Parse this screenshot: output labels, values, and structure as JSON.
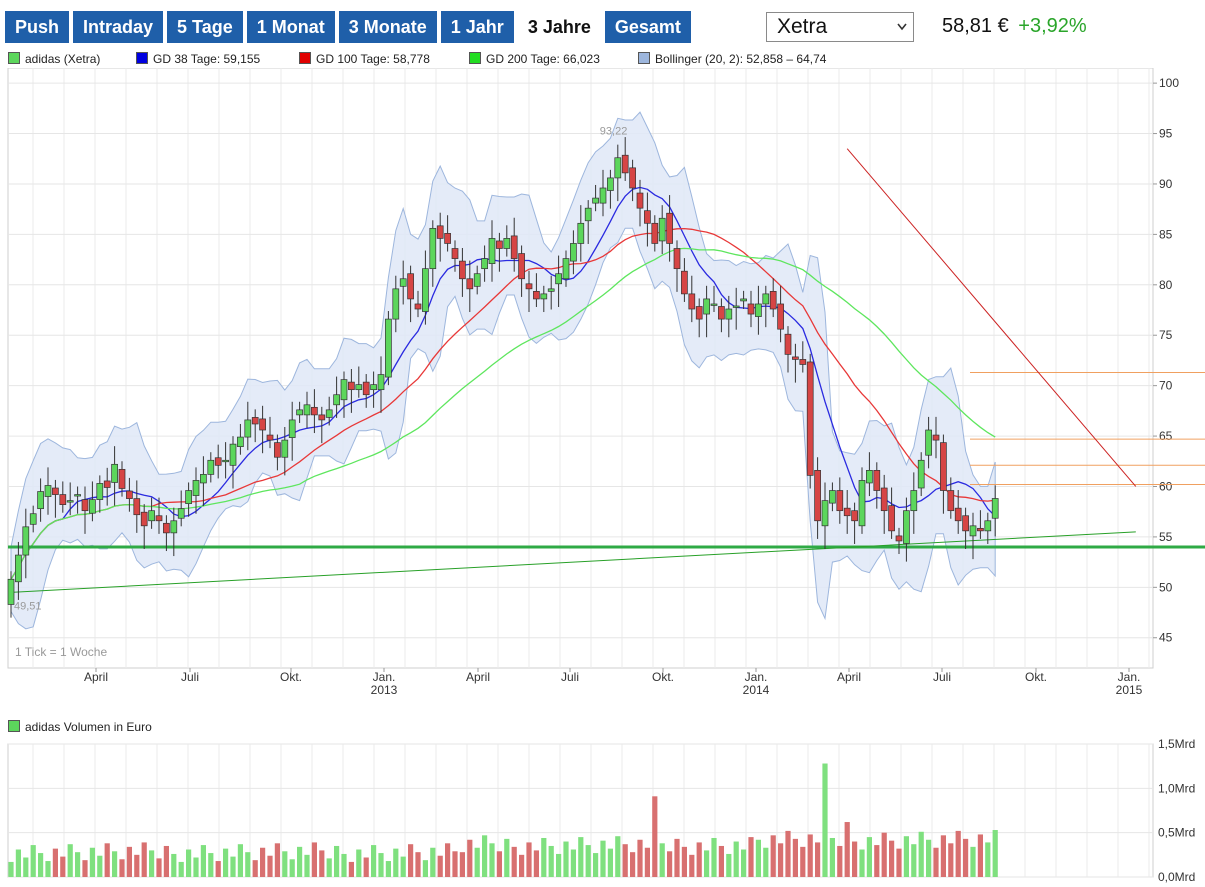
{
  "tabs": [
    {
      "label": "Push",
      "active": false
    },
    {
      "label": "Intraday",
      "active": false
    },
    {
      "label": "5 Tage",
      "active": false
    },
    {
      "label": "1 Monat",
      "active": false
    },
    {
      "label": "3 Monate",
      "active": false
    },
    {
      "label": "1 Jahr",
      "active": false
    },
    {
      "label": "3 Jahre",
      "active": true
    },
    {
      "label": "Gesamt",
      "active": false
    }
  ],
  "exchange": {
    "selected": "Xetra",
    "icon": "chevron-down-icon"
  },
  "quote": {
    "price": "58,81 €",
    "change": "+3,92%"
  },
  "legend": {
    "stock": "adidas (Xetra)",
    "gd38": "GD 38 Tage: 59,155",
    "gd100": "GD 100 Tage: 58,778",
    "gd200": "GD 200 Tage: 66,023",
    "bollinger": "Bollinger (20, 2): 52,858 – 64,74",
    "volume": "adidas Volumen in Euro"
  },
  "colors": {
    "tab": "#1f5fa9",
    "up": "#5cd65c",
    "down": "#d64545",
    "gd38": "#2a2ae0",
    "gd100": "#e83838",
    "gd200": "#5ee65e",
    "band": "#9db6dd",
    "support": "#2faa45",
    "trend_down": "#cc2222",
    "hlines": "#f0a060"
  },
  "chart_data": [
    {
      "type": "candlestick",
      "title": "adidas (Xetra)",
      "frequency_note": "1 Tick = 1 Woche",
      "y_ticks": [
        45,
        50,
        55,
        60,
        65,
        70,
        75,
        80,
        85,
        90,
        95,
        100
      ],
      "ylim": [
        42,
        101.5
      ],
      "month_ticks": [
        "April",
        "Juli",
        "Okt.",
        "Jan.",
        "April",
        "Juli",
        "Okt.",
        "Jan.",
        "April",
        "Juli",
        "Okt.",
        "Jan."
      ],
      "year_ticks": [
        "2013",
        "2014",
        "2015"
      ],
      "close_weekly": [
        50.8,
        53.2,
        56.0,
        57.3,
        59.5,
        60.1,
        59.2,
        58.2,
        58.6,
        59.2,
        57.6,
        58.7,
        60.3,
        59.9,
        62.2,
        59.8,
        58.8,
        57.2,
        56.1,
        57.6,
        56.6,
        55.4,
        56.6,
        57.8,
        59.6,
        60.6,
        61.2,
        62.6,
        62.1,
        62.6,
        64.2,
        64.9,
        66.6,
        66.2,
        65.6,
        64.6,
        62.9,
        64.6,
        66.6,
        67.6,
        68.1,
        67.1,
        66.6,
        67.6,
        69.1,
        70.6,
        69.6,
        70.1,
        69.1,
        70.1,
        71.1,
        76.6,
        79.6,
        80.6,
        78.6,
        77.6,
        81.6,
        85.6,
        84.6,
        84.1,
        82.6,
        80.6,
        79.6,
        81.1,
        82.6,
        84.6,
        83.6,
        84.6,
        82.6,
        80.6,
        79.6,
        78.6,
        79.1,
        79.6,
        81.1,
        82.6,
        84.1,
        86.1,
        87.6,
        88.6,
        89.6,
        90.6,
        92.6,
        91.1,
        89.6,
        87.6,
        86.1,
        84.1,
        86.6,
        84.1,
        81.6,
        79.1,
        77.6,
        76.6,
        78.6,
        78.1,
        76.6,
        77.6,
        77.9,
        78.6,
        77.1,
        78.1,
        79.1,
        77.6,
        75.6,
        73.1,
        72.6,
        72.1,
        61.1,
        56.6,
        58.6,
        59.6,
        57.6,
        57.1,
        56.6,
        60.6,
        61.6,
        59.6,
        57.6,
        55.6,
        54.6,
        57.6,
        59.6,
        62.6,
        65.6,
        64.6,
        59.6,
        57.6,
        56.6,
        55.6,
        56.1,
        55.6,
        56.6,
        58.81
      ],
      "all_time_labels": {
        "high": "93,22",
        "low": "49,51"
      },
      "indicators": {
        "gd38": 59.155,
        "gd100": 58.778,
        "gd200": 66.023,
        "bollinger": [
          52.858,
          64.74
        ]
      },
      "horizontal_lines": [
        71.3,
        64.7,
        62.1,
        60.2
      ],
      "support_level": 54.0,
      "trendlines": [
        {
          "name": "resistance",
          "from_week": 113,
          "from": 93.5,
          "to_week": 152,
          "to": 60.0
        },
        {
          "name": "support",
          "from_week": 0,
          "from": 49.5,
          "to_week": 152,
          "to": 55.5
        }
      ]
    },
    {
      "type": "bar",
      "title": "adidas Volumen in Euro",
      "y_ticks": [
        "0,0Mrd",
        "0,5Mrd",
        "1,0Mrd",
        "1,5Mrd"
      ],
      "ylim": [
        0,
        1.5
      ],
      "unit": "Mrd EUR"
    }
  ]
}
